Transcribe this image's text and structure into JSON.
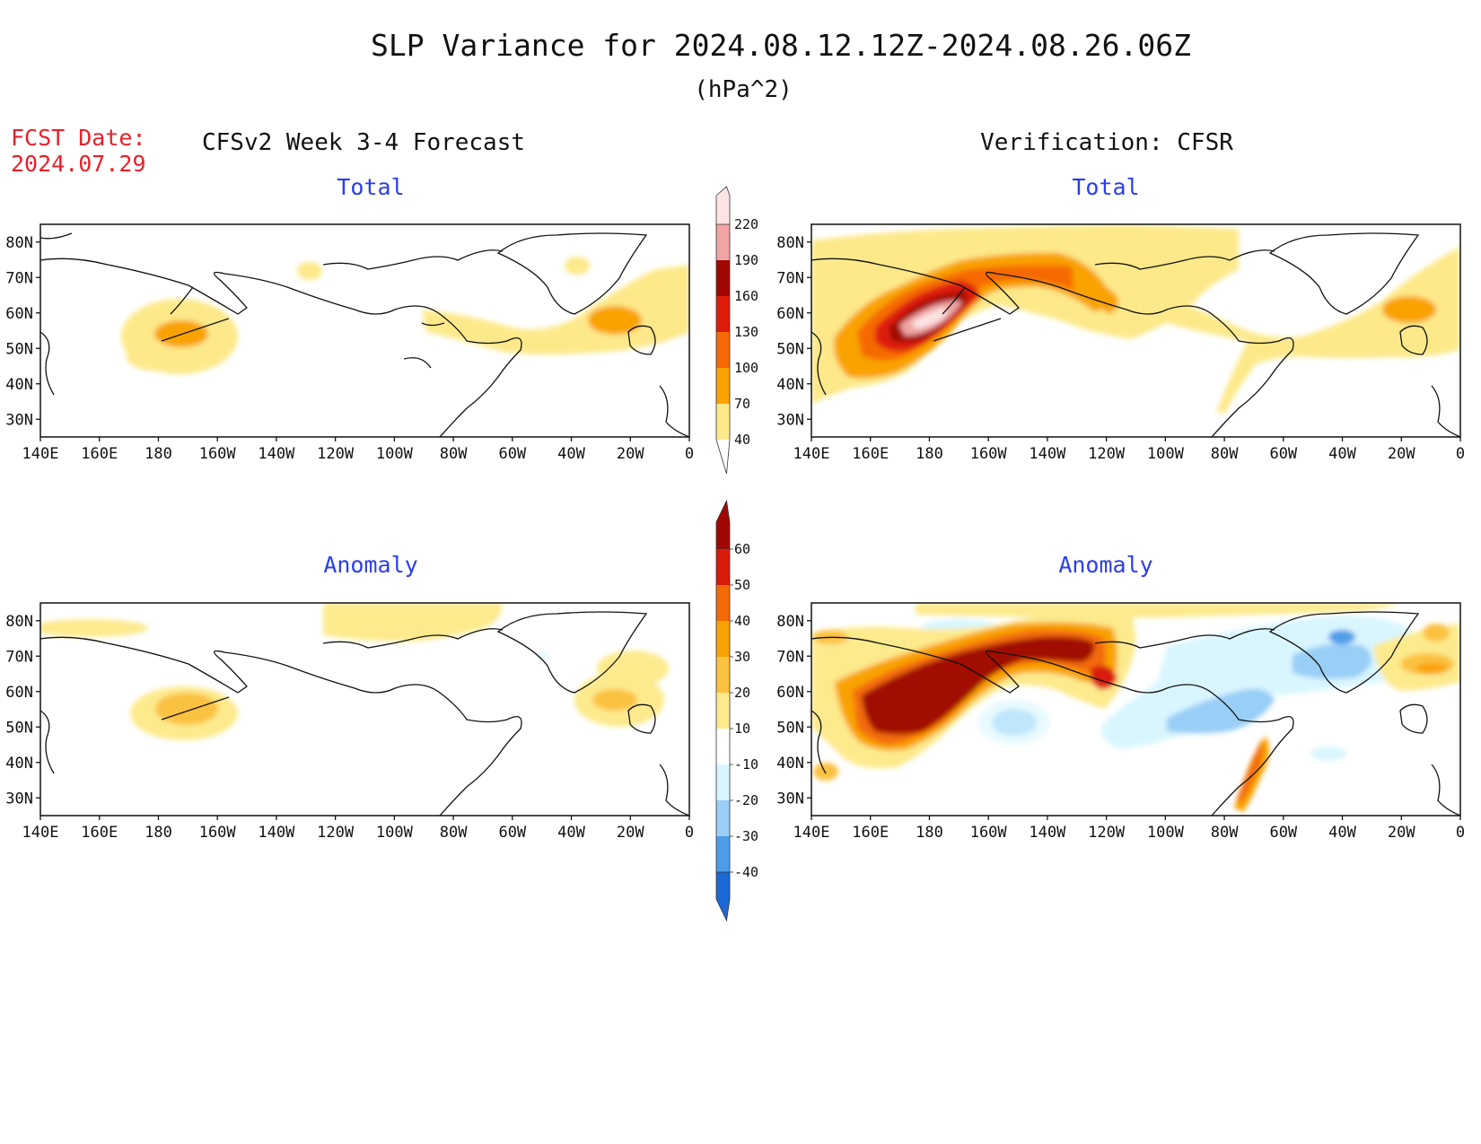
{
  "title": "SLP Variance for 2024.08.12.12Z-2024.08.26.06Z",
  "units": "(hPa^2)",
  "fcst_date_label": "FCST Date:",
  "fcst_date": "2024.07.29",
  "left_header": "CFSv2 Week 3-4 Forecast",
  "right_header": "Verification: CFSR",
  "panels": [
    {
      "id": "fcst-total",
      "title": "Total"
    },
    {
      "id": "obs-total",
      "title": "Total"
    },
    {
      "id": "fcst-anom",
      "title": "Anomaly"
    },
    {
      "id": "obs-anom",
      "title": "Anomaly"
    }
  ],
  "lat_labels": [
    "80N",
    "70N",
    "60N",
    "50N",
    "40N",
    "30N"
  ],
  "lon_labels": [
    "140E",
    "160E",
    "180",
    "160W",
    "140W",
    "120W",
    "100W",
    "80W",
    "60W",
    "40W",
    "20W",
    "0"
  ],
  "colorbar_total": {
    "levels": [
      "40",
      "70",
      "100",
      "130",
      "160",
      "190",
      "220"
    ],
    "colors": [
      "#fde98a",
      "#f9a202",
      "#f56a06",
      "#dd1c0a",
      "#a10803",
      "#f0a4a4",
      "#fde4e4"
    ]
  },
  "colorbar_anom": {
    "levels": [
      "60",
      "50",
      "40",
      "30",
      "20",
      "10",
      "-10",
      "-20",
      "-30",
      "-40"
    ],
    "colors": [
      "#a10803",
      "#d91b0a",
      "#f36a07",
      "#f9a204",
      "#fbc140",
      "#fdea8d",
      "#ffffff",
      "#d9f6ff",
      "#99cef6",
      "#4f9de9",
      "#1d68d5"
    ]
  },
  "chart_data": {
    "type": "map",
    "lat_range": [
      "25N",
      "85N"
    ],
    "lon_range": [
      "140E",
      "0"
    ],
    "fcst_total_max_region": "near 180 / 55N",
    "obs_total_max": "above 220 near 180 / 57N"
  }
}
